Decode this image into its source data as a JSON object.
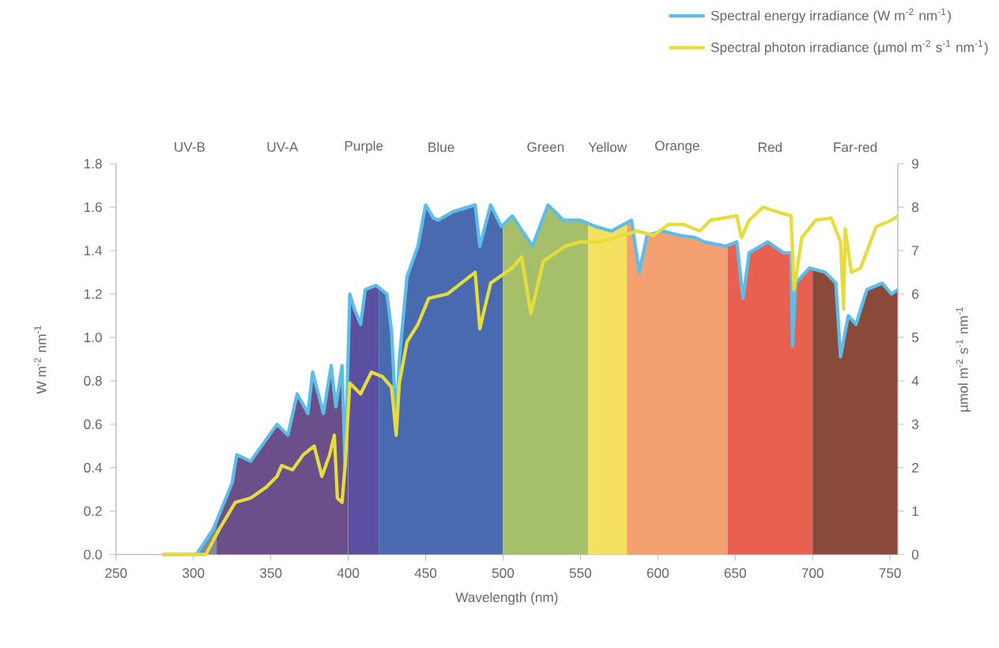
{
  "chart_data": {
    "type": "line",
    "xlabel": "Wavelength (nm)",
    "ylabel": "W m$^{-2}$ nm$^{-1}$",
    "y2label": "µmol m$^{-2}$ s$^{-1}$ nm$^{-1}$",
    "xlim": [
      250,
      755
    ],
    "xticks": [
      250,
      300,
      350,
      400,
      450,
      500,
      550,
      600,
      650,
      700,
      750
    ],
    "ylim": [
      0,
      1.8
    ],
    "yticks": [
      {
        "value": 0,
        "label": "0.0"
      },
      {
        "value": 0.2,
        "label": "0.2"
      },
      {
        "value": 0.4,
        "label": "0.4"
      },
      {
        "value": 0.6,
        "label": "0.6"
      },
      {
        "value": 0.8,
        "label": "0.8"
      },
      {
        "value": 1.0,
        "label": "1.0"
      },
      {
        "value": 1.2,
        "label": "1.2"
      },
      {
        "value": 1.4,
        "label": "1.4"
      },
      {
        "value": 1.6,
        "label": "1.6"
      },
      {
        "value": 1.8,
        "label": "1.8"
      }
    ],
    "y2lim": [
      0,
      9
    ],
    "y2ticks": [
      0,
      1,
      2,
      3,
      4,
      5,
      6,
      7,
      8,
      9
    ],
    "legend": "top right",
    "marker": "none",
    "line_style": "solid",
    "bands": [
      {
        "axis": "x",
        "from": 280,
        "to": 315,
        "label": "UV-B",
        "color": "#8a8590"
      },
      {
        "axis": "x",
        "from": 315,
        "to": 400,
        "label": "UV-A",
        "color": "#6a4f8a"
      },
      {
        "axis": "x",
        "from": 400,
        "to": 420,
        "label": "Purple",
        "color": "#5a4fa0"
      },
      {
        "axis": "x",
        "from": 420,
        "to": 500,
        "label": "Blue",
        "color": "#4a6ab0"
      },
      {
        "axis": "x",
        "from": 500,
        "to": 555,
        "label": "Green",
        "color": "#a6c06a"
      },
      {
        "axis": "x",
        "from": 555,
        "to": 580,
        "label": "Yellow",
        "color": "#f5e060"
      },
      {
        "axis": "x",
        "from": 580,
        "to": 645,
        "label": "Orange",
        "color": "#f4a070"
      },
      {
        "axis": "x",
        "from": 645,
        "to": 700,
        "label": "Red",
        "color": "#e86050"
      },
      {
        "axis": "x",
        "from": 700,
        "to": 755,
        "label": "Far-red",
        "color": "#8a4a3a"
      }
    ],
    "series": [
      {
        "name": "Spectral energy irradiance (W m$^{-2}$ nm$^{-1}$)",
        "color": "#5bbde8",
        "x": [
          280,
          302,
          313,
          325,
          328,
          337,
          344,
          354,
          361,
          367,
          374,
          377,
          384,
          389,
          392,
          396,
          398,
          401,
          404,
          408,
          411,
          418,
          425,
          428,
          431,
          433,
          438,
          445,
          450,
          455,
          458,
          468,
          482,
          485,
          492,
          499,
          506,
          519,
          529,
          539,
          550,
          560,
          570,
          583,
          588,
          593,
          603,
          614,
          624,
          630,
          644,
          651,
          655,
          659,
          671,
          681,
          686,
          687,
          689,
          698,
          708,
          715,
          718,
          723,
          728,
          735,
          745,
          751,
          755
        ],
        "values": [
          0,
          0,
          0.12,
          0.33,
          0.46,
          0.43,
          0.5,
          0.6,
          0.55,
          0.74,
          0.65,
          0.84,
          0.65,
          0.87,
          0.68,
          0.87,
          0.4,
          1.2,
          1.13,
          1.06,
          1.22,
          1.24,
          1.2,
          1.03,
          0.6,
          0.9,
          1.28,
          1.42,
          1.61,
          1.55,
          1.54,
          1.58,
          1.61,
          1.42,
          1.61,
          1.51,
          1.56,
          1.42,
          1.61,
          1.54,
          1.54,
          1.51,
          1.49,
          1.54,
          1.3,
          1.47,
          1.49,
          1.47,
          1.46,
          1.44,
          1.42,
          1.44,
          1.18,
          1.39,
          1.44,
          1.39,
          1.39,
          0.96,
          1.25,
          1.32,
          1.3,
          1.25,
          0.91,
          1.1,
          1.06,
          1.22,
          1.25,
          1.2,
          1.22
        ]
      },
      {
        "name": "Spectral photon irradiance (µmol m$^{-2}$ s$^{-1}$ nm$^{-1}$)",
        "color": "#e6dc3a",
        "axis": "y2",
        "x": [
          280,
          308,
          317,
          327,
          337,
          347,
          354,
          357,
          364,
          371,
          378,
          383,
          388,
          391,
          393,
          396,
          398,
          401,
          408,
          415,
          422,
          428,
          431,
          433,
          438,
          445,
          452,
          464,
          482,
          485,
          492,
          506,
          512,
          518,
          526,
          540,
          550,
          563,
          577,
          587,
          597,
          607,
          617,
          627,
          634,
          651,
          654,
          659,
          668,
          681,
          686,
          688,
          693,
          702,
          712,
          718,
          720,
          721,
          725,
          731,
          741,
          751,
          755
        ],
        "values": [
          0,
          0,
          0.6,
          1.2,
          1.3,
          1.55,
          1.8,
          2.05,
          1.95,
          2.3,
          2.5,
          1.8,
          2.3,
          2.75,
          1.3,
          1.2,
          2.05,
          3.95,
          3.7,
          4.2,
          4.1,
          3.85,
          2.75,
          3.95,
          4.9,
          5.3,
          5.9,
          6.0,
          6.5,
          5.2,
          6.25,
          6.6,
          6.85,
          5.55,
          6.75,
          7.1,
          7.2,
          7.2,
          7.35,
          7.45,
          7.35,
          7.6,
          7.6,
          7.45,
          7.7,
          7.8,
          7.3,
          7.7,
          8.0,
          7.85,
          7.8,
          6.1,
          7.3,
          7.7,
          7.75,
          7.2,
          5.65,
          7.5,
          6.5,
          6.6,
          7.55,
          7.7,
          7.8
        ]
      }
    ]
  }
}
